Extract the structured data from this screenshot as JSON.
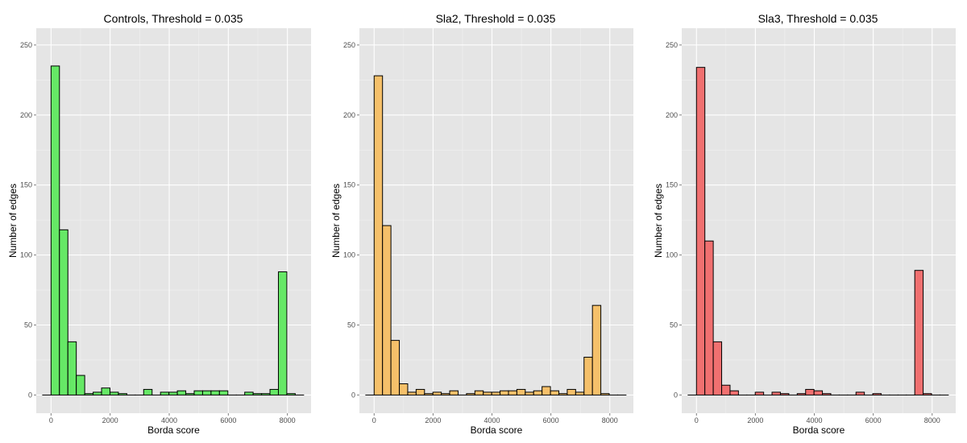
{
  "chart_data": [
    {
      "type": "bar",
      "title": "Controls, Threshold =  0.035",
      "xlabel": "Borda score",
      "ylabel": "Number of edges",
      "fill_color": "#66e866",
      "xlim": [
        -500,
        8800
      ],
      "ylim": [
        -13,
        262
      ],
      "x_ticks": [
        0,
        2000,
        4000,
        6000,
        8000
      ],
      "y_ticks": [
        0,
        50,
        100,
        150,
        200,
        250
      ],
      "bin_width": 285,
      "x": [
        -285,
        0,
        285,
        570,
        855,
        1140,
        1425,
        1710,
        1995,
        2280,
        2565,
        2850,
        3135,
        3420,
        3705,
        3990,
        4275,
        4560,
        4845,
        5130,
        5415,
        5700,
        5985,
        6270,
        6555,
        6840,
        7125,
        7410,
        7695,
        7980,
        8265
      ],
      "values": [
        0,
        235,
        118,
        38,
        14,
        1,
        2,
        5,
        2,
        1,
        0,
        0,
        4,
        0,
        2,
        2,
        3,
        1,
        3,
        3,
        3,
        3,
        0,
        0,
        2,
        1,
        1,
        4,
        88,
        1,
        0
      ]
    },
    {
      "type": "bar",
      "title": "Sla2, Threshold =  0.035",
      "xlabel": "Borda score",
      "ylabel": "Number of edges",
      "fill_color": "#f5c06a",
      "xlim": [
        -500,
        8800
      ],
      "ylim": [
        -13,
        262
      ],
      "x_ticks": [
        0,
        2000,
        4000,
        6000,
        8000
      ],
      "y_ticks": [
        0,
        50,
        100,
        150,
        200,
        250
      ],
      "bin_width": 285,
      "x": [
        -285,
        0,
        285,
        570,
        855,
        1140,
        1425,
        1710,
        1995,
        2280,
        2565,
        2850,
        3135,
        3420,
        3705,
        3990,
        4275,
        4560,
        4845,
        5130,
        5415,
        5700,
        5985,
        6270,
        6555,
        6840,
        7125,
        7410,
        7695,
        7980,
        8265
      ],
      "values": [
        0,
        228,
        121,
        39,
        8,
        2,
        4,
        1,
        2,
        1,
        3,
        0,
        1,
        3,
        2,
        2,
        3,
        3,
        4,
        2,
        3,
        6,
        3,
        1,
        4,
        2,
        27,
        64,
        1,
        0,
        0
      ]
    },
    {
      "type": "bar",
      "title": "Sla3, Threshold =  0.035",
      "xlabel": "Borda score",
      "ylabel": "Number of edges",
      "fill_color": "#f07070",
      "xlim": [
        -500,
        8800
      ],
      "ylim": [
        -13,
        262
      ],
      "x_ticks": [
        0,
        2000,
        4000,
        6000,
        8000
      ],
      "y_ticks": [
        0,
        50,
        100,
        150,
        200,
        250
      ],
      "bin_width": 285,
      "x": [
        -285,
        0,
        285,
        570,
        855,
        1140,
        1425,
        1710,
        1995,
        2280,
        2565,
        2850,
        3135,
        3420,
        3705,
        3990,
        4275,
        4560,
        4845,
        5130,
        5415,
        5700,
        5985,
        6270,
        6555,
        6840,
        7125,
        7410,
        7695,
        7980,
        8265
      ],
      "values": [
        0,
        234,
        110,
        38,
        7,
        3,
        0,
        0,
        2,
        0,
        2,
        1,
        0,
        1,
        4,
        3,
        1,
        0,
        0,
        0,
        2,
        0,
        1,
        0,
        0,
        0,
        0,
        89,
        1,
        0,
        0
      ]
    }
  ]
}
